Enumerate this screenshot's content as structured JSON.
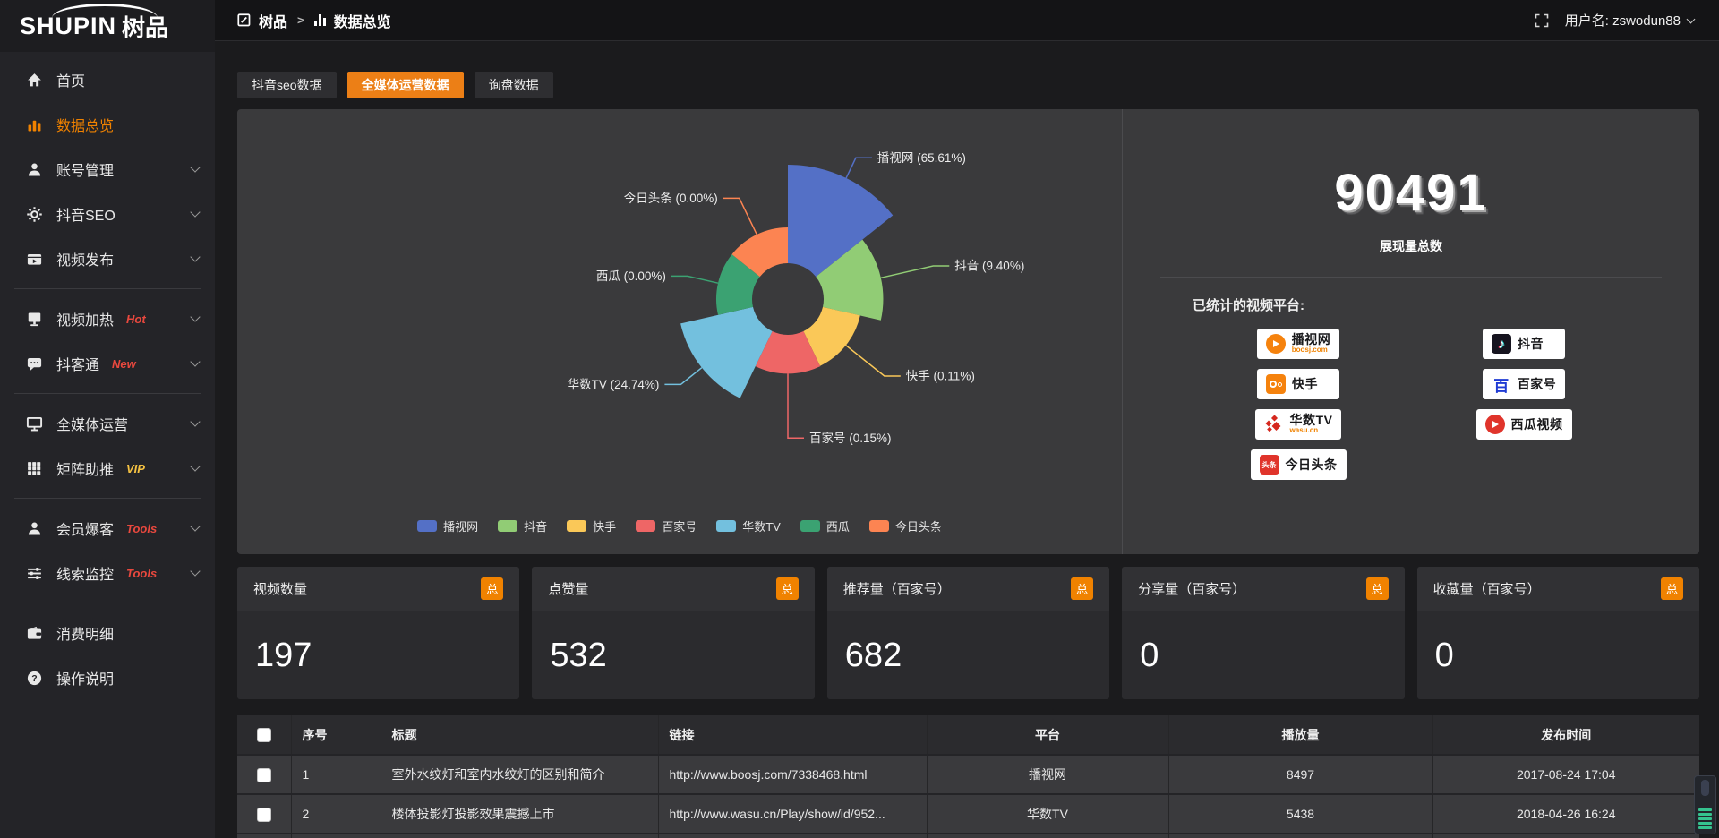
{
  "brand": {
    "logo_en": "SHUPIN",
    "logo_cn": "树品"
  },
  "header": {
    "breadcrumb": {
      "root": "树品",
      "separator": ">",
      "current": "数据总览"
    },
    "user_label": "用户名: zswodun88"
  },
  "sidebar": {
    "items": [
      {
        "label": "首页",
        "icon": "home-icon"
      },
      {
        "label": "数据总览",
        "icon": "bar-chart-icon",
        "active": true
      },
      {
        "label": "账号管理",
        "icon": "user-icon",
        "expandable": true
      },
      {
        "label": "抖音SEO",
        "icon": "gear-icon",
        "expandable": true
      },
      {
        "label": "视频发布",
        "icon": "video-icon",
        "expandable": true
      },
      {
        "divider": true
      },
      {
        "label": "视频加热",
        "icon": "heat-icon",
        "badge": "Hot",
        "badge_style": "red",
        "expandable": true
      },
      {
        "label": "抖客通",
        "icon": "chat-icon",
        "badge": "New",
        "badge_style": "red",
        "expandable": true
      },
      {
        "divider": true
      },
      {
        "label": "全媒体运营",
        "icon": "monitor-icon",
        "expandable": true
      },
      {
        "label": "矩阵助推",
        "icon": "grid-icon",
        "badge": "VIP",
        "badge_style": "yellow",
        "expandable": true
      },
      {
        "divider": true
      },
      {
        "label": "会员爆客",
        "icon": "member-icon",
        "badge": "Tools",
        "badge_style": "red",
        "expandable": true
      },
      {
        "label": "线索监控",
        "icon": "sliders-icon",
        "badge": "Tools",
        "badge_style": "red",
        "expandable": true
      },
      {
        "divider": true
      },
      {
        "label": "消费明细",
        "icon": "wallet-icon"
      },
      {
        "label": "操作说明",
        "icon": "help-icon"
      }
    ]
  },
  "tabs": [
    {
      "label": "抖音seo数据",
      "active": false
    },
    {
      "label": "全媒体运营数据",
      "active": true
    },
    {
      "label": "询盘数据",
      "active": false
    }
  ],
  "chart_data": {
    "type": "pie",
    "variant": "nightingale-rose-donut",
    "categories": [
      "播视网",
      "抖音",
      "快手",
      "百家号",
      "华数TV",
      "西瓜",
      "今日头条"
    ],
    "values_percent": [
      65.61,
      9.4,
      0.11,
      0.15,
      24.74,
      0,
      0
    ],
    "labels": [
      "播视网 (65.61%)",
      "抖音 (9.40%)",
      "快手 (0.11%)",
      "百家号 (0.15%)",
      "华数TV (24.74%)",
      "西瓜 (0.00%)",
      "今日头条 (0.00%)"
    ],
    "colors": [
      "#5470c6",
      "#91cc75",
      "#fac858",
      "#ee6666",
      "#73c0de",
      "#3ba272",
      "#fc8452"
    ],
    "legend": [
      "播视网",
      "抖音",
      "快手",
      "百家号",
      "华数TV",
      "西瓜",
      "今日头条"
    ],
    "legend_position": "bottom",
    "equal_angle_sectors": true,
    "start_at_top_clockwise": true
  },
  "summary": {
    "total_value": "90491",
    "total_label": "展现量总数",
    "platforms_title": "已统计的视频平台:",
    "platforms": [
      {
        "name": "播视网",
        "sub": "boosj.com",
        "icon": "boosj-logo"
      },
      {
        "name": "抖音",
        "icon": "douyin-logo"
      },
      {
        "name": "快手",
        "icon": "kuaishou-logo"
      },
      {
        "name": "百家号",
        "icon": "baijiahao-logo"
      },
      {
        "name": "华数TV",
        "sub": "wasu.cn",
        "icon": "wasu-logo"
      },
      {
        "name": "西瓜视频",
        "icon": "xigua-logo"
      },
      {
        "name": "今日头条",
        "icon": "toutiao-logo"
      }
    ]
  },
  "stat_cards": [
    {
      "title": "视频数量",
      "badge": "总",
      "value": "197"
    },
    {
      "title": "点赞量",
      "badge": "总",
      "value": "532"
    },
    {
      "title": "推荐量（百家号）",
      "badge": "总",
      "value": "682"
    },
    {
      "title": "分享量（百家号）",
      "badge": "总",
      "value": "0"
    },
    {
      "title": "收藏量（百家号）",
      "badge": "总",
      "value": "0"
    }
  ],
  "table": {
    "columns": [
      "序号",
      "标题",
      "链接",
      "平台",
      "播放量",
      "发布时间"
    ],
    "rows": [
      {
        "seq": "1",
        "title": "室外水纹灯和室内水纹灯的区别和简介",
        "link": "http://www.boosj.com/7338468.html",
        "platform": "播视网",
        "plays": "8497",
        "time": "2017-08-24 17:04",
        "checked": false
      },
      {
        "seq": "2",
        "title": "楼体投影灯投影效果震撼上市",
        "link": "http://www.wasu.cn/Play/show/id/952...",
        "platform": "华数TV",
        "plays": "5438",
        "time": "2018-04-26 16:24",
        "checked": false
      }
    ]
  },
  "colors": {
    "accent_orange": "#ec7f16",
    "sidebar_active_orange": "#f08200",
    "link_orange": "#f57e2a",
    "badge_red": "#e8483e",
    "badge_yellow": "#f5c242",
    "panel_bg": "#3a3a3c"
  }
}
